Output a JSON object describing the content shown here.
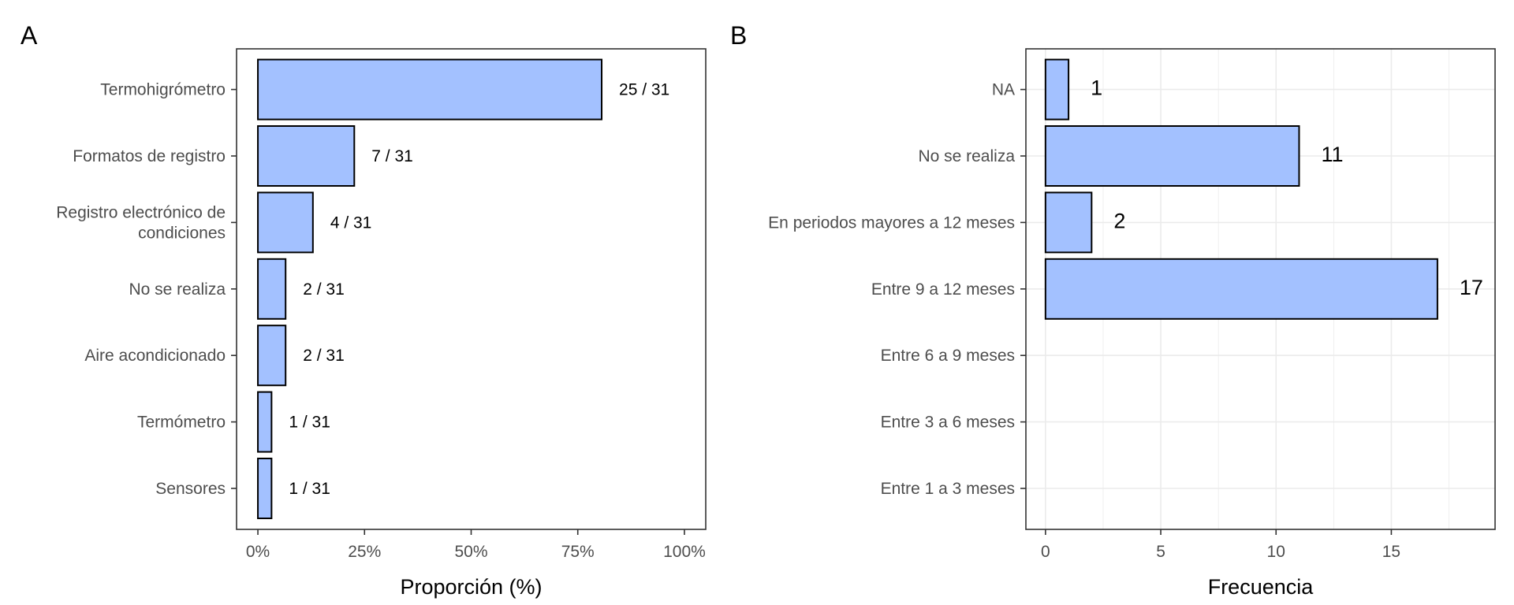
{
  "figure": {
    "background": "#ffffff"
  },
  "style": {
    "bar_fill": "#a3c1ff",
    "bar_stroke": "#000000",
    "grid_color": "#ebebeb",
    "panel_border": "#333333",
    "tick_label_color": "#4d4d4d"
  },
  "chart_data": [
    {
      "panel_label": "A",
      "type": "bar",
      "orientation": "horizontal",
      "categories": [
        "Sensores",
        "Termómetro",
        "Aire acondicionado",
        "No se realiza",
        "Registro electrónico de condiciones",
        "Formatos de registro",
        "Termohigrómetro"
      ],
      "category_lines": [
        [
          "Sensores"
        ],
        [
          "Termómetro"
        ],
        [
          "Aire acondicionado"
        ],
        [
          "No se realiza"
        ],
        [
          "Registro electrónico de",
          "condiciones"
        ],
        [
          "Formatos de registro"
        ],
        [
          "Termohigrómetro"
        ]
      ],
      "values": [
        3.2,
        3.2,
        6.5,
        6.5,
        12.9,
        22.6,
        80.6
      ],
      "data_labels": [
        "1 / 31",
        "1 / 31",
        "2 / 31",
        "2 / 31",
        "4 / 31",
        "7 / 31",
        "25 / 31"
      ],
      "xlabel": "Proporción (%)",
      "ylabel": "",
      "xlim": [
        -5,
        105
      ],
      "xticks": [
        0,
        25,
        50,
        75,
        100
      ],
      "xtick_labels": [
        "0%",
        "25%",
        "50%",
        "75%",
        "100%"
      ],
      "grid": false
    },
    {
      "panel_label": "B",
      "type": "bar",
      "orientation": "horizontal",
      "categories": [
        "Entre 1 a 3 meses",
        "Entre 3 a 6 meses",
        "Entre 6 a 9 meses",
        "Entre 9 a 12 meses",
        "En periodos mayores a 12 meses",
        "No se realiza",
        "NA"
      ],
      "category_lines": [
        [
          "Entre 1 a 3 meses"
        ],
        [
          "Entre 3 a 6 meses"
        ],
        [
          "Entre 6 a 9 meses"
        ],
        [
          "Entre 9 a 12 meses"
        ],
        [
          "En periodos mayores a 12 meses"
        ],
        [
          "No se realiza"
        ],
        [
          "NA"
        ]
      ],
      "values": [
        0,
        0,
        0,
        17,
        2,
        11,
        1
      ],
      "data_labels": [
        "",
        "",
        "",
        "17",
        "2",
        "11",
        "1"
      ],
      "xlabel": "Frecuencia",
      "ylabel": "",
      "xlim": [
        -0.85,
        19.5
      ],
      "xticks": [
        0,
        5,
        10,
        15
      ],
      "xtick_labels": [
        "0",
        "5",
        "10",
        "15"
      ],
      "grid": true
    }
  ]
}
